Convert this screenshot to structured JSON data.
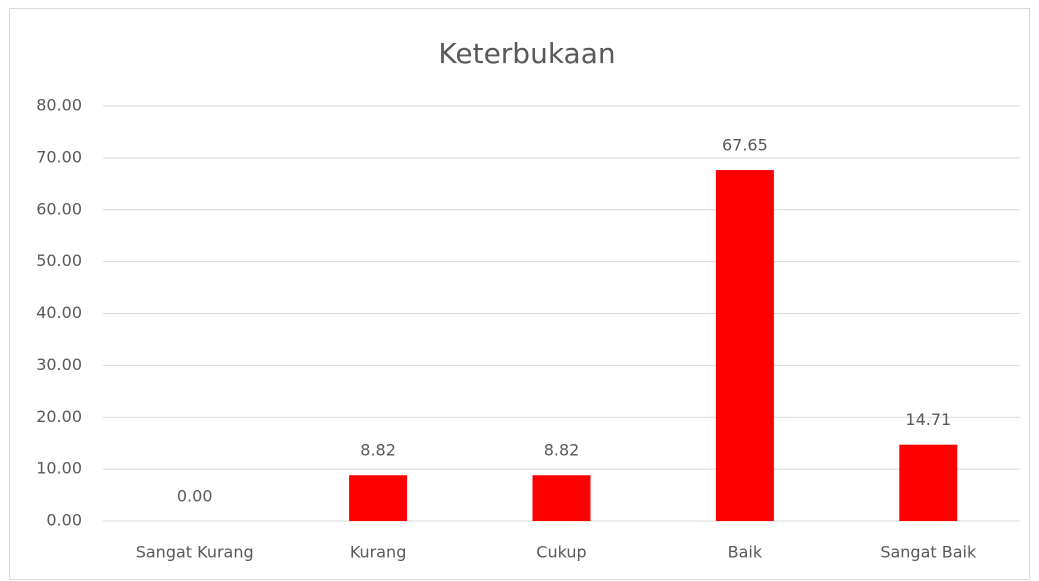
{
  "chart_data": {
    "type": "bar",
    "title": "Keterbukaan",
    "categories": [
      "Sangat Kurang",
      "Kurang",
      "Cukup",
      "Baik",
      "Sangat Baik"
    ],
    "values": [
      0,
      8.82,
      8.82,
      67.65,
      14.71
    ],
    "value_labels": [
      "0.00",
      "8.82",
      "8.82",
      "67.65",
      "14.71"
    ],
    "color": "#ff0000",
    "ylim": [
      0,
      80
    ],
    "yticks": [
      {
        "value": 0,
        "label": "0.00"
      },
      {
        "value": 10,
        "label": "10.00"
      },
      {
        "value": 20,
        "label": "20.00"
      },
      {
        "value": 30,
        "label": "30.00"
      },
      {
        "value": 40,
        "label": "40.00"
      },
      {
        "value": 50,
        "label": "50.00"
      },
      {
        "value": 60,
        "label": "60.00"
      },
      {
        "value": 70,
        "label": "70.00"
      },
      {
        "value": 80,
        "label": "80.00"
      }
    ],
    "grid": true
  }
}
